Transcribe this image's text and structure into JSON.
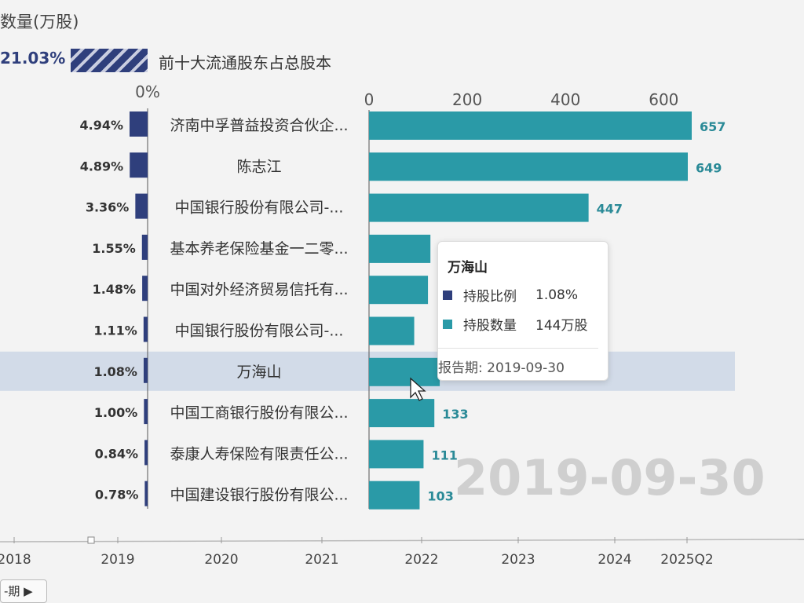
{
  "header": {
    "partial_title": "数量(万股)",
    "total_ratio": "21.03%",
    "total_legend": "前十大流通股东占总股本"
  },
  "colors": {
    "ratio_bar": "#2f3f7c",
    "quantity_bar": "#2a9aa7",
    "highlight_row": "#d2dbe8",
    "watermark": "#cfcfcf"
  },
  "chart_data": {
    "type": "bar",
    "orientation": "horizontal",
    "categories": [
      "济南中孚普益投资合伙企...",
      "陈志江",
      "中国银行股份有限公司-...",
      "基本养老保险基金一二零...",
      "中国对外经济贸易信托有...",
      "中国银行股份有限公司-...",
      "万海山",
      "中国工商银行股份有限公...",
      "泰康人寿保险有限责任公...",
      "中国建设银行股份有限公..."
    ],
    "series": [
      {
        "name": "持股比例",
        "values": [
          4.94,
          4.89,
          3.36,
          1.55,
          1.48,
          1.11,
          1.08,
          1.0,
          0.84,
          0.78
        ],
        "labels": [
          "4.94%",
          "4.89%",
          "3.36%",
          "1.55%",
          "1.48%",
          "1.11%",
          "1.08%",
          "1.00%",
          "0.84%",
          "0.78%"
        ],
        "axis_label": "0%"
      },
      {
        "name": "持股数量",
        "values": [
          657,
          649,
          447,
          125,
          120,
          92,
          144,
          133,
          111,
          103
        ],
        "labels": [
          "657",
          "649",
          "447",
          "",
          "",
          "",
          "",
          "133",
          "111",
          "103"
        ],
        "xticks": [
          "0",
          "200",
          "400",
          "600"
        ],
        "xlim": [
          0,
          657
        ]
      }
    ],
    "highlight_index": 6,
    "watermark": "2019-09-30",
    "timeline": [
      "2018",
      "2019",
      "2020",
      "2021",
      "2022",
      "2023",
      "2024",
      "2025Q2"
    ]
  },
  "tooltip": {
    "title": "万海山",
    "rows": [
      {
        "name": "持股比例",
        "value": "1.08%"
      },
      {
        "name": "持股数量",
        "value": "144万股"
      }
    ],
    "period": "报告期: 2019-09-30"
  },
  "controls": {
    "prev_label": "-期 ▶"
  }
}
